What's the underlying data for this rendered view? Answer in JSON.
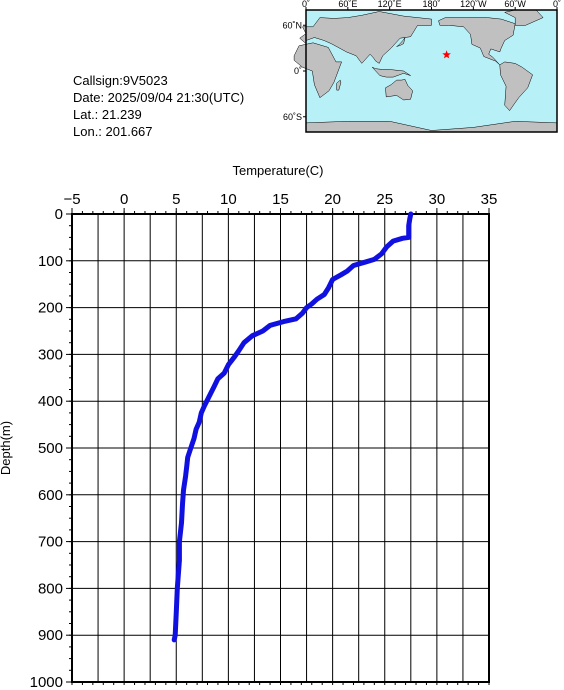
{
  "info": {
    "callsign": "Callsign:9V5023",
    "date": "Date:  2025/09/04 21:30(UTC)",
    "lat": "Lat.:  21.239",
    "lon": "Lon.:  201.667"
  },
  "map": {
    "lon_labels": [
      "0˚",
      "60˚E",
      "120˚E",
      "180˚",
      "120˚W",
      "60˚W",
      "0˚"
    ],
    "lat_labels": [
      "60˚N",
      "0˚",
      "60˚S"
    ],
    "station": {
      "lat": 21.239,
      "lon": 201.667
    },
    "ocean_color": "#b8f0f8",
    "land_color": "#c0c0c0",
    "marker_color": "#ff0000"
  },
  "chart_data": {
    "type": "line",
    "xlabel": "Temperature(C)",
    "ylabel": "Depth(m)",
    "xlim": [
      -5,
      35
    ],
    "ylim": [
      0,
      1000
    ],
    "x_ticks": [
      "−5",
      "0",
      "5",
      "10",
      "15",
      "20",
      "25",
      "30",
      "35"
    ],
    "y_ticks": [
      "0",
      "100",
      "200",
      "300",
      "400",
      "500",
      "600",
      "700",
      "800",
      "900",
      "1000"
    ],
    "grid": true,
    "line_color": "#1010e0",
    "series": [
      {
        "values": [
          [
            27.5,
            0
          ],
          [
            27.4,
            10
          ],
          [
            27.3,
            25
          ],
          [
            27.3,
            50
          ],
          [
            26.7,
            52
          ],
          [
            25.8,
            58
          ],
          [
            25.2,
            70
          ],
          [
            24.7,
            85
          ],
          [
            24.0,
            97
          ],
          [
            23.1,
            103
          ],
          [
            22.0,
            110
          ],
          [
            21.4,
            122
          ],
          [
            20.8,
            130
          ],
          [
            20.0,
            140
          ],
          [
            19.6,
            158
          ],
          [
            19.2,
            172
          ],
          [
            18.5,
            182
          ],
          [
            18.0,
            192
          ],
          [
            17.5,
            200
          ],
          [
            17.1,
            212
          ],
          [
            16.5,
            224
          ],
          [
            15.3,
            230
          ],
          [
            14.0,
            238
          ],
          [
            13.3,
            250
          ],
          [
            12.3,
            260
          ],
          [
            11.5,
            275
          ],
          [
            11.0,
            292
          ],
          [
            10.6,
            305
          ],
          [
            10.0,
            322
          ],
          [
            9.6,
            340
          ],
          [
            9.0,
            352
          ],
          [
            8.6,
            370
          ],
          [
            8.1,
            392
          ],
          [
            7.7,
            410
          ],
          [
            7.4,
            425
          ],
          [
            7.2,
            445
          ],
          [
            6.9,
            460
          ],
          [
            6.7,
            480
          ],
          [
            6.4,
            500
          ],
          [
            6.1,
            520
          ],
          [
            6.0,
            540
          ],
          [
            5.9,
            560
          ],
          [
            5.7,
            590
          ],
          [
            5.6,
            620
          ],
          [
            5.5,
            660
          ],
          [
            5.3,
            700
          ],
          [
            5.3,
            740
          ],
          [
            5.1,
            800
          ],
          [
            5.0,
            850
          ],
          [
            4.9,
            900
          ],
          [
            4.8,
            910
          ]
        ]
      }
    ]
  }
}
